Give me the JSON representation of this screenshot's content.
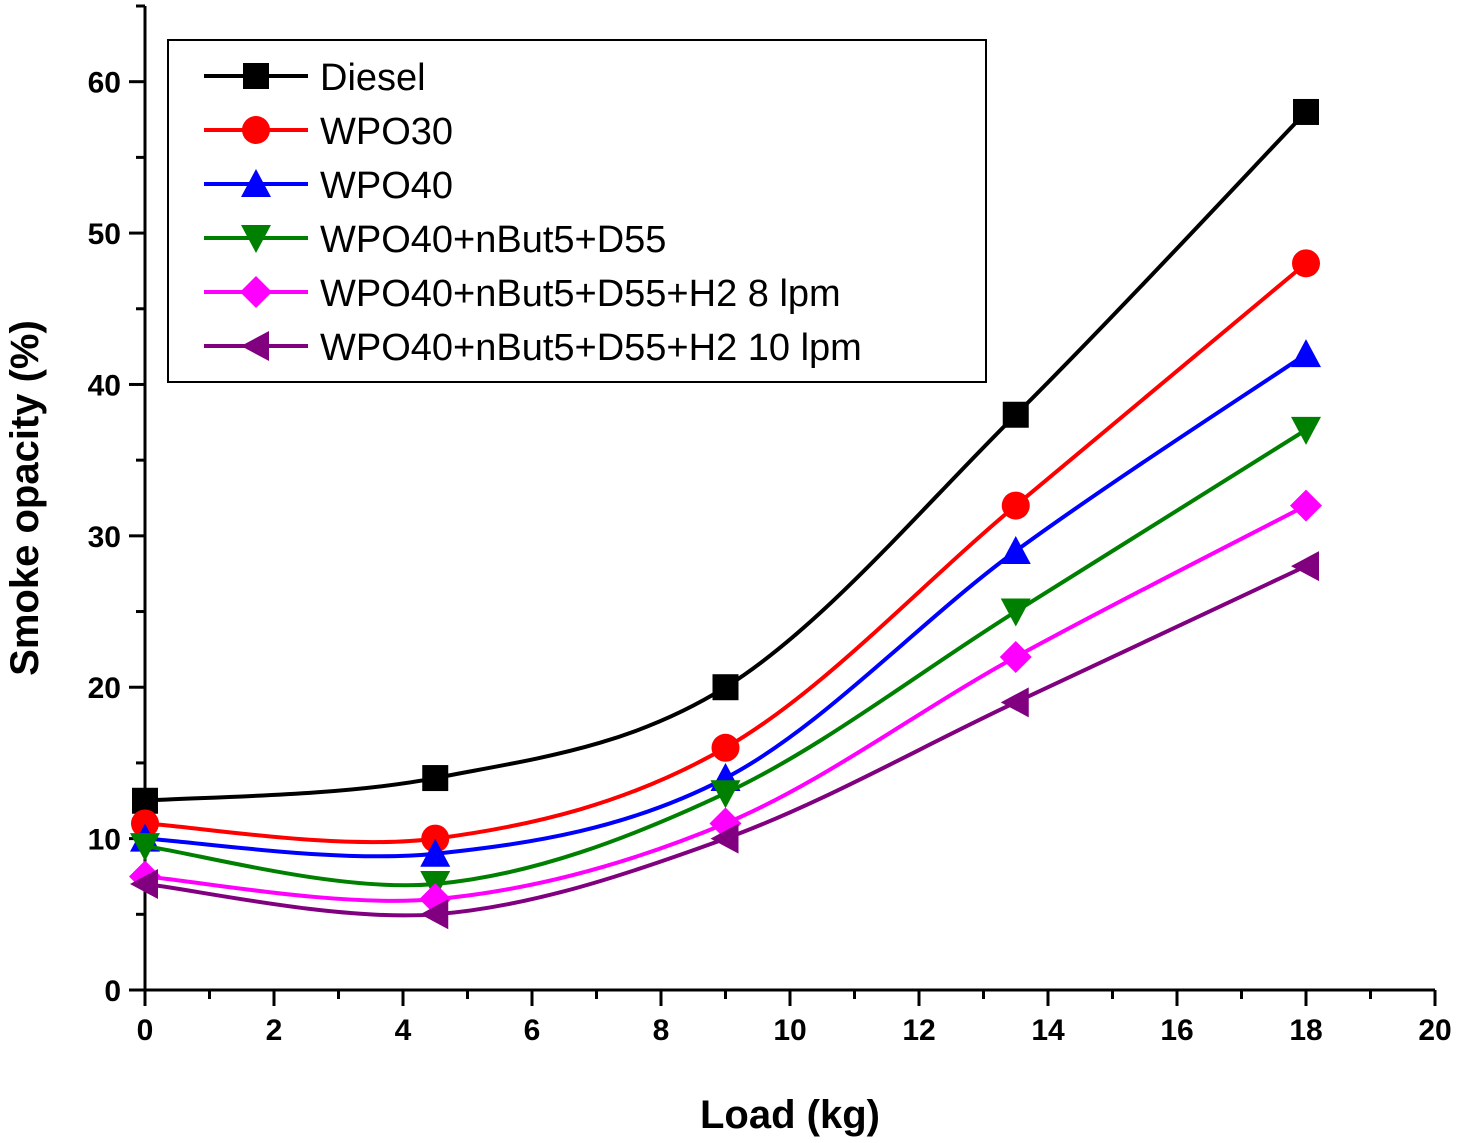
{
  "chart_data": {
    "type": "line",
    "xlabel": "Load (kg)",
    "ylabel": "Smoke opacity (%)",
    "xlim": [
      0,
      20
    ],
    "ylim": [
      0,
      65
    ],
    "x_ticks": [
      0,
      2,
      4,
      6,
      8,
      10,
      12,
      14,
      16,
      18,
      20
    ],
    "y_ticks": [
      0,
      10,
      20,
      30,
      40,
      50,
      60
    ],
    "grid": false,
    "legend_position": "top-left",
    "x": [
      0,
      4.5,
      9,
      13.5,
      18
    ],
    "series": [
      {
        "name": "Diesel",
        "values": [
          12.5,
          14,
          20,
          38,
          58
        ],
        "color": "#000000",
        "marker": "square"
      },
      {
        "name": "WPO30",
        "values": [
          11,
          10,
          16,
          32,
          48
        ],
        "color": "#ff0000",
        "marker": "circle"
      },
      {
        "name": "WPO40",
        "values": [
          10,
          9,
          14,
          29,
          42
        ],
        "color": "#0000ff",
        "marker": "triangle-up"
      },
      {
        "name": "WPO40+nBut5+D55",
        "values": [
          9.5,
          7,
          13,
          25,
          37
        ],
        "color": "#008000",
        "marker": "triangle-down"
      },
      {
        "name": "WPO40+nBut5+D55+H2 8 lpm",
        "values": [
          7.5,
          6,
          11,
          22,
          32
        ],
        "color": "#ff00ff",
        "marker": "diamond"
      },
      {
        "name": "WPO40+nBut5+D55+H2 10 lpm",
        "values": [
          7,
          5,
          10,
          19,
          28
        ],
        "color": "#800080",
        "marker": "triangle-left"
      }
    ]
  }
}
